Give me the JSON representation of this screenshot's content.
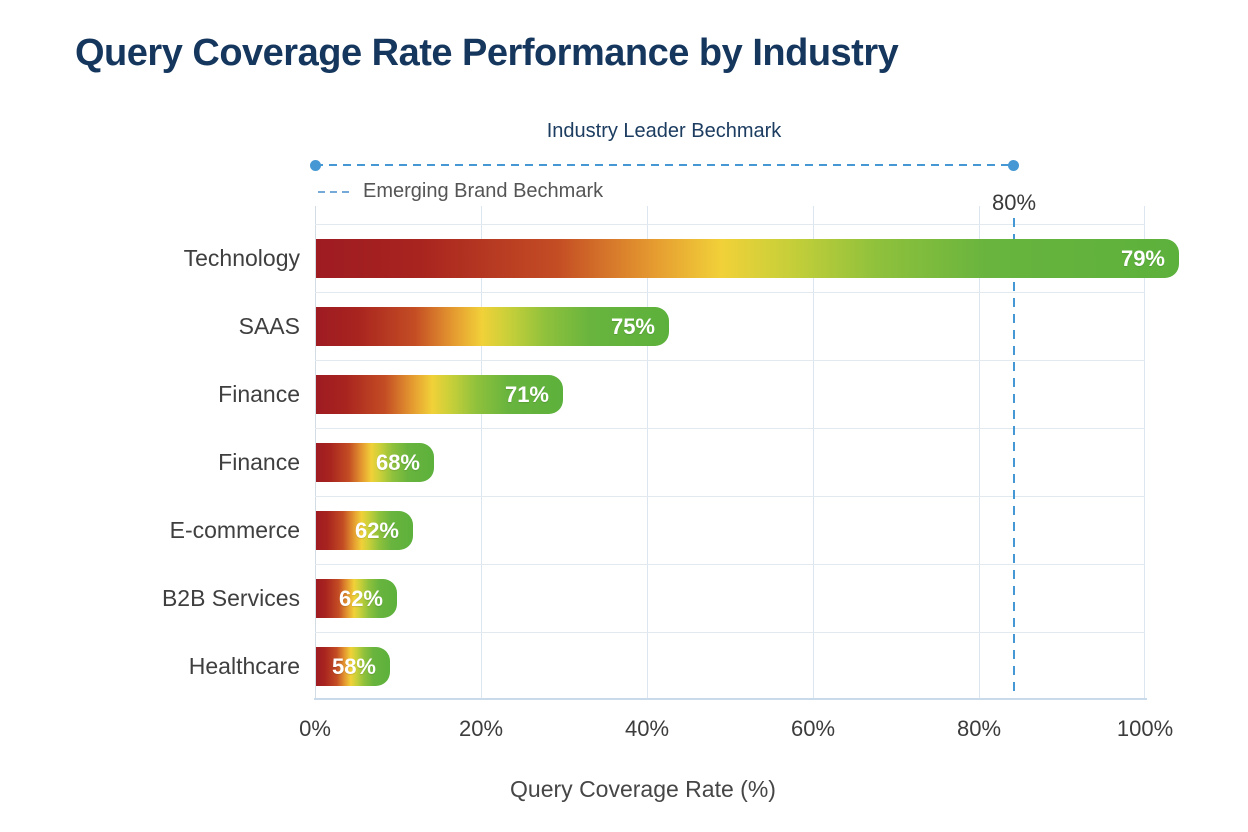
{
  "title": "Query Coverage Rate Performance by Industry",
  "annotations": {
    "leader_label": "Industry Leader Bechmark",
    "emerging_label": "Emerging Brand Bechmark",
    "threshold_label": "80%"
  },
  "colors": {
    "title_navy": "#15365d",
    "benchmark_blue": "#4598d4",
    "gridline": "#dce6f0",
    "axis_line": "#c9dbea",
    "label_gray": "#555555",
    "bar_gradient": [
      "#9e1b22",
      "#c44d24",
      "#f1d139",
      "#8fc13c",
      "#5cb13c"
    ],
    "bar_value_text": "#ffffff"
  },
  "chart_data": {
    "type": "bar",
    "orientation": "horizontal",
    "title": "Query Coverage Rate Performance by Industry",
    "xlabel": "Query Coverage Rate (%)",
    "ylabel": "",
    "xlim": [
      0,
      100
    ],
    "grid": true,
    "x_ticks": [
      "0%",
      "20%",
      "40%",
      "60%",
      "80%",
      "100%"
    ],
    "categories": [
      "Technology",
      "SAAS",
      "Finance",
      "Finance",
      "E-commerce",
      "B2B Services",
      "Healthcare"
    ],
    "values": [
      79,
      75,
      71,
      68,
      62,
      62,
      58
    ],
    "benchmark_line_label": "80%",
    "benchmark_line_x_pct": 84,
    "leader_benchmark_span_pct": [
      0,
      84
    ],
    "rows": [
      {
        "label": "Technology",
        "value": 79,
        "value_label": "79%",
        "bar_visual_pct": 104.0
      },
      {
        "label": "SAAS",
        "value": 75,
        "value_label": "75%",
        "bar_visual_pct": 42.5
      },
      {
        "label": "Finance",
        "value": 71,
        "value_label": "71%",
        "bar_visual_pct": 29.8
      },
      {
        "label": "Finance",
        "value": 68,
        "value_label": "68%",
        "bar_visual_pct": 14.2
      },
      {
        "label": "E-commerce",
        "value": 62,
        "value_label": "62%",
        "bar_visual_pct": 11.7
      },
      {
        "label": "B2B Services",
        "value": 62,
        "value_label": "62%",
        "bar_visual_pct": 9.8
      },
      {
        "label": "Healthcare",
        "value": 58,
        "value_label": "58%",
        "bar_visual_pct": 8.9
      }
    ]
  }
}
